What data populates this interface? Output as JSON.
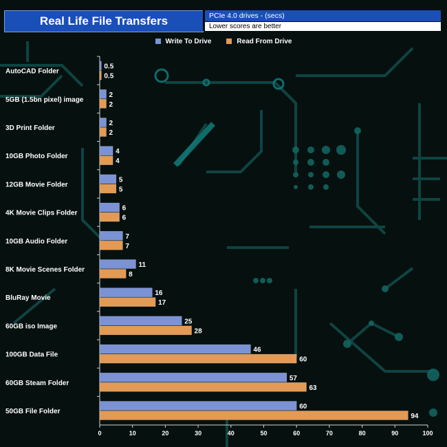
{
  "chart_data": {
    "type": "bar",
    "orientation": "horizontal",
    "title": "Real Life File Transfers",
    "subtitle": "PCIe 4.0 drives - (secs)",
    "note": "Lower scores are better",
    "categories": [
      "AutoCAD Folder",
      "5GB (1.5bn pixel) image",
      "3D Print Folder",
      "10GB Photo Folder",
      "12GB Movie Folder",
      "4K Movie Clips Folder",
      "10GB Audio Folder",
      "8K Movie Scenes Folder",
      "BluRay Movie",
      "60GB iso Image",
      "100GB Data File",
      "60GB Steam Folder",
      "50GB File Folder"
    ],
    "series": [
      {
        "name": "Write To  Drive",
        "color": "#7b93d4",
        "values": [
          0.5,
          2,
          2,
          4,
          5,
          6,
          7,
          11,
          16,
          25,
          46,
          57,
          60
        ]
      },
      {
        "name": "Read From  Drive",
        "color": "#e39a55",
        "values": [
          0.5,
          2,
          2,
          4,
          5,
          6,
          7,
          8,
          17,
          28,
          60,
          63,
          94
        ]
      }
    ],
    "xlim": [
      0,
      100
    ],
    "xticks": [
      0,
      10,
      20,
      30,
      40,
      50,
      60,
      70,
      80,
      90,
      100
    ],
    "xlabel": "",
    "ylabel": "",
    "legend": "top-center",
    "grid": false
  }
}
